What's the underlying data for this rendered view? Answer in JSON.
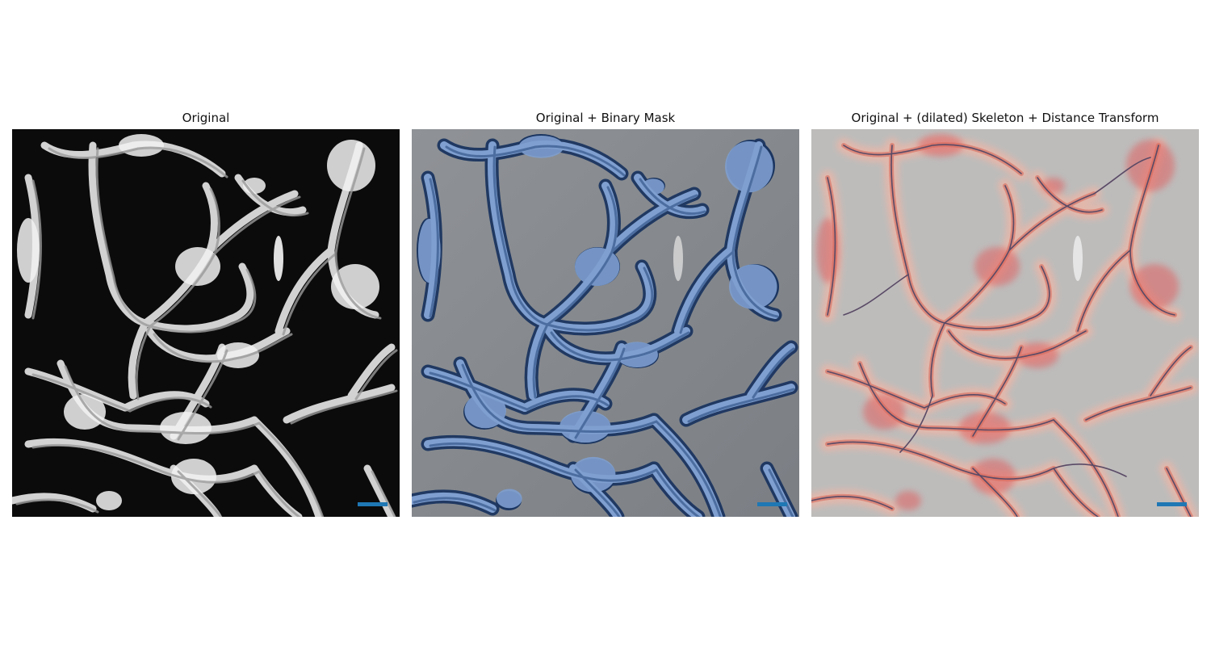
{
  "figure": {
    "panels": [
      {
        "title": "Original",
        "type": "micrograph",
        "background": "#0b0b0b",
        "structure": "#f2f2f2",
        "scale_bar_color": "#1f77b4"
      },
      {
        "title": "Original + Binary Mask",
        "type": "micrograph-mask-overlay",
        "background": "#888b8f",
        "mask_fill": "#7f9fd0",
        "mask_edge": "#1b3560",
        "scale_bar_color": "#1f77b4"
      },
      {
        "title": "Original + (dilated) Skeleton + Distance Transform",
        "type": "micrograph-skeleton-overlay",
        "background": "#bdbcbb",
        "halo_color": "#e06060",
        "skeleton_color": "#5a4a66",
        "scale_bar_color": "#1f77b4"
      }
    ]
  }
}
